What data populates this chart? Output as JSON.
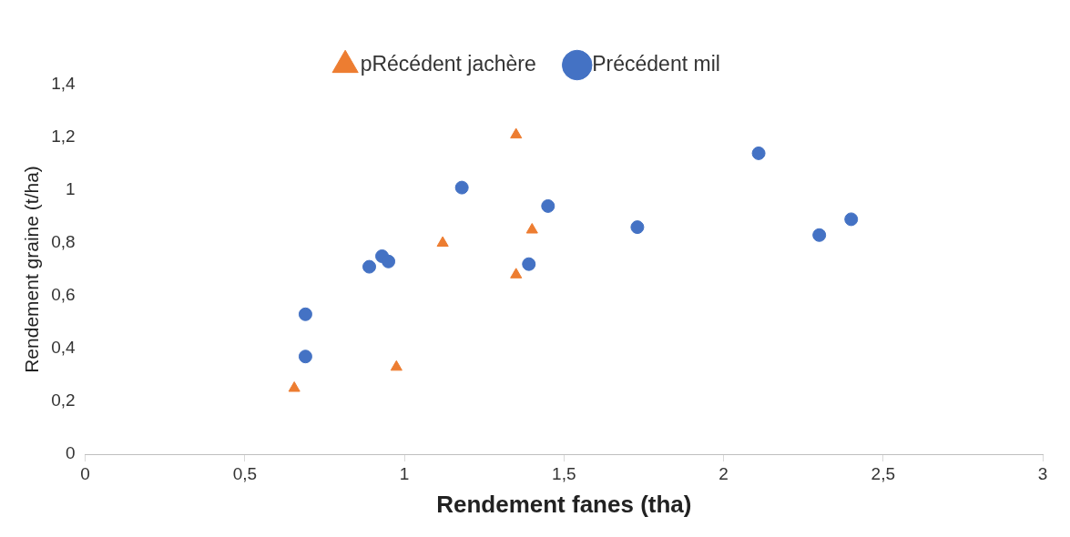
{
  "chart_data": {
    "type": "scatter",
    "xlabel": "Rendement fanes (tha)",
    "ylabel": "Rendement graine (t/ha)",
    "legend": "top",
    "grid": false,
    "xlim": [
      0,
      3
    ],
    "xticks": [
      0,
      {
        "value": 0.5,
        "label": "0,5"
      },
      1,
      {
        "value": 1.5,
        "label": "1,5"
      },
      2,
      {
        "value": 2.5,
        "label": "2,5"
      },
      3
    ],
    "ylim": [
      0,
      1.4
    ],
    "yticks": [
      0,
      {
        "value": 0.2,
        "label": "0,2"
      },
      {
        "value": 0.4,
        "label": "0,4"
      },
      {
        "value": 0.6,
        "label": "0,6"
      },
      {
        "value": 0.8,
        "label": "0,8"
      },
      1,
      {
        "value": 1.2,
        "label": "1,2"
      },
      {
        "value": 1.4,
        "label": "1,4"
      }
    ],
    "series": [
      {
        "name": "pRécédent jachère",
        "color": "#ed7d31",
        "marker": "triangle",
        "x": [
          0.655,
          0.975,
          1.12,
          1.35,
          1.4,
          1.35
        ],
        "values": [
          0.25,
          0.33,
          0.8,
          1.21,
          0.85,
          0.68
        ]
      },
      {
        "name": "Précédent mil",
        "color": "#4472c4",
        "marker": "circle",
        "x": [
          0.69,
          0.69,
          0.89,
          0.93,
          0.95,
          1.18,
          1.39,
          1.45,
          1.73,
          2.11,
          2.3,
          2.4
        ],
        "values": [
          0.37,
          0.53,
          0.71,
          0.75,
          0.73,
          1.01,
          0.72,
          0.94,
          0.86,
          1.14,
          0.83,
          0.89
        ]
      }
    ]
  }
}
